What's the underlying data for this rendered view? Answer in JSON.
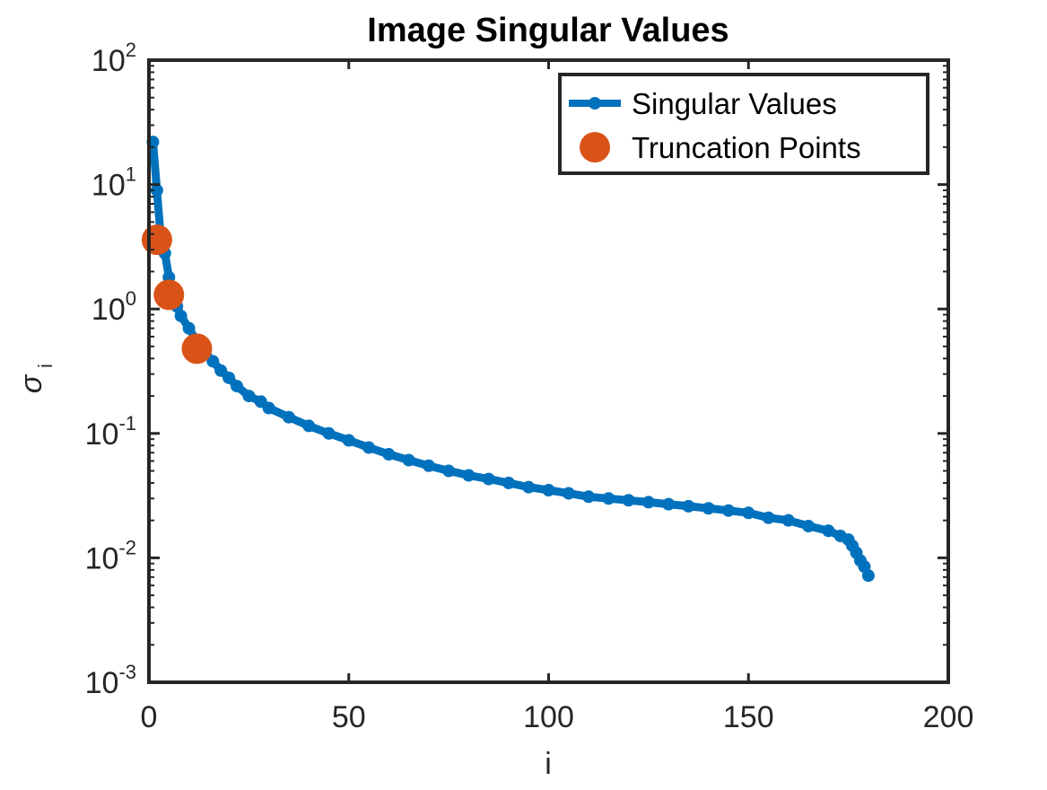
{
  "chart_data": {
    "type": "line",
    "title": "Image Singular Values",
    "xlabel": "i",
    "ylabel": {
      "main": "σ",
      "subscript": "i"
    },
    "xlim": [
      0,
      200
    ],
    "ylim": [
      0.001,
      100
    ],
    "yscale": "log",
    "x_ticks": [
      "0",
      "50",
      "100",
      "150",
      "200"
    ],
    "y_ticks": [
      {
        "base": "10",
        "exp": "2"
      },
      {
        "base": "10",
        "exp": "1"
      },
      {
        "base": "10",
        "exp": "0"
      },
      {
        "base": "10",
        "exp": "-1"
      },
      {
        "base": "10",
        "exp": "-2"
      },
      {
        "base": "10",
        "exp": "-3"
      }
    ],
    "grid": false,
    "legend_position": "top-right",
    "series": [
      {
        "name": "Singular Values",
        "color": "#0072BD",
        "style": "line-with-dot-markers",
        "points": [
          [
            1,
            22.0
          ],
          [
            2,
            9.0
          ],
          [
            3,
            3.6
          ],
          [
            4,
            2.8
          ],
          [
            5,
            1.8
          ],
          [
            6,
            1.3
          ],
          [
            7,
            1.05
          ],
          [
            8,
            0.88
          ],
          [
            10,
            0.7
          ],
          [
            12,
            0.55
          ],
          [
            14,
            0.45
          ],
          [
            16,
            0.38
          ],
          [
            18,
            0.32
          ],
          [
            20,
            0.28
          ],
          [
            22,
            0.24
          ],
          [
            25,
            0.2
          ],
          [
            28,
            0.18
          ],
          [
            30,
            0.16
          ],
          [
            35,
            0.135
          ],
          [
            40,
            0.115
          ],
          [
            45,
            0.1
          ],
          [
            50,
            0.088
          ],
          [
            55,
            0.077
          ],
          [
            60,
            0.068
          ],
          [
            65,
            0.061
          ],
          [
            70,
            0.055
          ],
          [
            75,
            0.05
          ],
          [
            80,
            0.046
          ],
          [
            85,
            0.043
          ],
          [
            90,
            0.04
          ],
          [
            95,
            0.037
          ],
          [
            100,
            0.035
          ],
          [
            105,
            0.033
          ],
          [
            110,
            0.031
          ],
          [
            115,
            0.03
          ],
          [
            120,
            0.029
          ],
          [
            125,
            0.028
          ],
          [
            130,
            0.027
          ],
          [
            135,
            0.026
          ],
          [
            140,
            0.025
          ],
          [
            145,
            0.024
          ],
          [
            150,
            0.023
          ],
          [
            155,
            0.021
          ],
          [
            160,
            0.02
          ],
          [
            165,
            0.018
          ],
          [
            170,
            0.0165
          ],
          [
            173,
            0.015
          ],
          [
            175,
            0.014
          ],
          [
            176,
            0.0125
          ],
          [
            177,
            0.011
          ],
          [
            178,
            0.0095
          ],
          [
            179,
            0.0085
          ],
          [
            180,
            0.0072
          ]
        ]
      },
      {
        "name": "Truncation Points",
        "color": "#D95319",
        "style": "large-dot-markers",
        "points": [
          [
            2,
            3.6
          ],
          [
            5,
            1.3
          ],
          [
            12,
            0.48
          ]
        ]
      }
    ]
  }
}
